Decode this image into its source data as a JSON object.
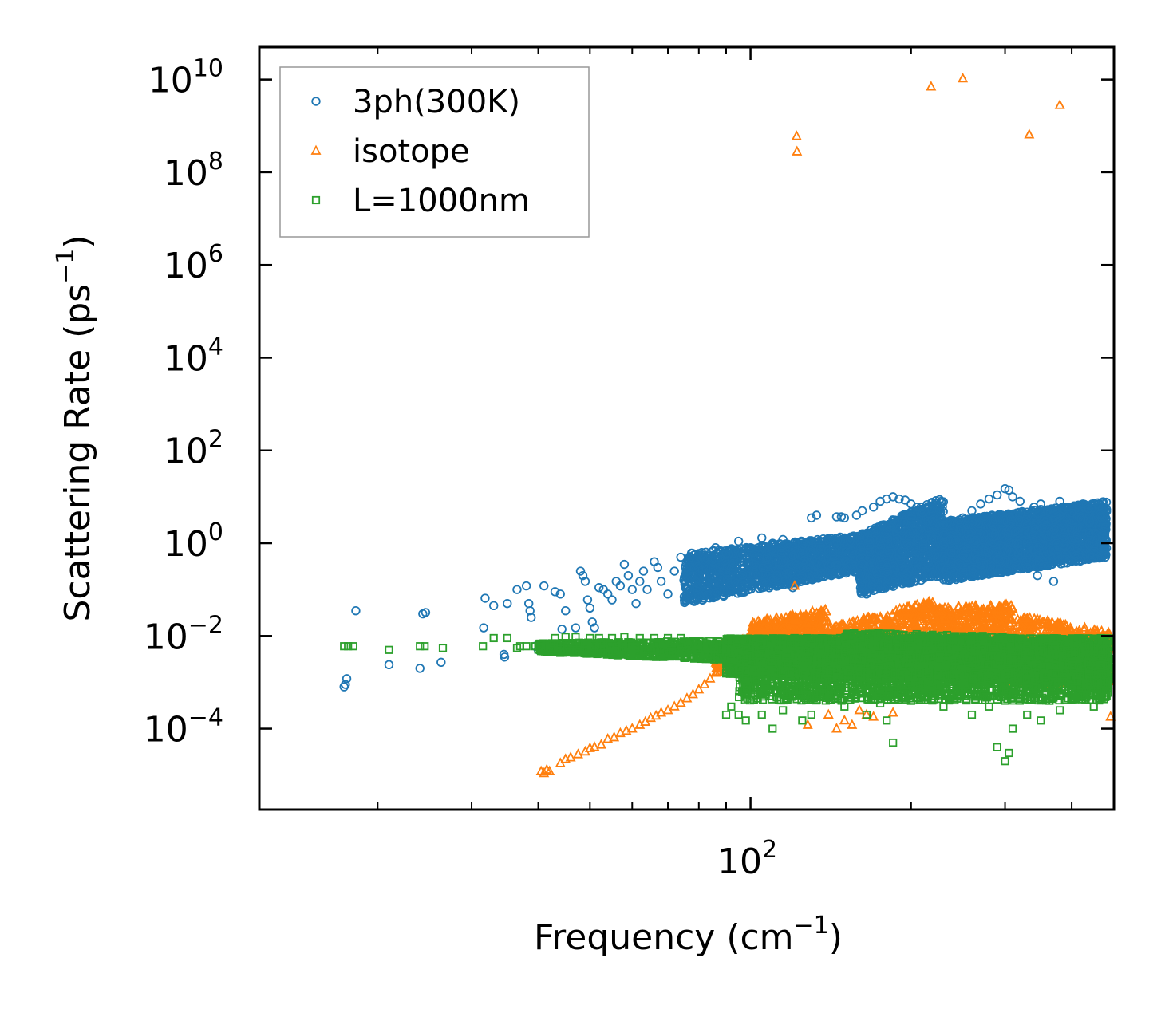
{
  "chart_data": {
    "type": "scatter",
    "xscale": "log",
    "yscale": "log",
    "xlim": [
      12,
      480
    ],
    "ylim": [
      1.8e-06,
      50000000000.0
    ],
    "xlabel": {
      "main": "Frequency (cm",
      "sup": "−1",
      "tail": ")"
    },
    "ylabel": {
      "main": "Scattering Rate (ps",
      "sup": "−1",
      "tail": ")"
    },
    "xticks": [
      {
        "value": 100,
        "base": "10",
        "exp": "2"
      }
    ],
    "yticks": [
      {
        "value": 10000000000.0,
        "base": "10",
        "exp": "10"
      },
      {
        "value": 100000000.0,
        "base": "10",
        "exp": "8"
      },
      {
        "value": 1000000.0,
        "base": "10",
        "exp": "6"
      },
      {
        "value": 10000.0,
        "base": "10",
        "exp": "4"
      },
      {
        "value": 100.0,
        "base": "10",
        "exp": "2"
      },
      {
        "value": 1,
        "base": "10",
        "exp": "0"
      },
      {
        "value": 0.01,
        "base": "10",
        "exp": "−2"
      },
      {
        "value": 0.0001,
        "base": "10",
        "exp": "−4"
      }
    ],
    "legend_position": "top-left",
    "series": [
      {
        "name": "3ph(300K)",
        "color": "#1f77b4",
        "marker": "circle",
        "points": [
          [
            17.3,
            0.0008
          ],
          [
            17.4,
            0.0009
          ],
          [
            17.5,
            0.0012
          ],
          [
            18.2,
            0.035
          ],
          [
            21.0,
            0.0024
          ],
          [
            24.0,
            0.002
          ],
          [
            24.3,
            0.03
          ],
          [
            24.6,
            0.032
          ],
          [
            26.3,
            0.0027
          ],
          [
            31.6,
            0.015
          ],
          [
            31.8,
            0.065
          ],
          [
            33.0,
            0.045
          ],
          [
            34.5,
            0.004
          ],
          [
            34.6,
            0.0035
          ],
          [
            35.0,
            0.05
          ],
          [
            36.5,
            0.1
          ],
          [
            38.0,
            0.12
          ],
          [
            38.4,
            0.05
          ],
          [
            38.6,
            0.035
          ],
          [
            38.8,
            0.025
          ],
          [
            39.5,
            0.006
          ],
          [
            40.0,
            0.005
          ],
          [
            41.0,
            0.12
          ],
          [
            41.5,
            0.006
          ],
          [
            43.0,
            0.09
          ],
          [
            44.0,
            0.08
          ],
          [
            44.3,
            0.014
          ],
          [
            45.0,
            0.035
          ],
          [
            47.0,
            0.015
          ],
          [
            48.0,
            0.25
          ],
          [
            48.5,
            0.2
          ],
          [
            49.0,
            0.15
          ],
          [
            49.5,
            0.06
          ],
          [
            50.0,
            0.04
          ],
          [
            50.5,
            0.02
          ],
          [
            51.0,
            0.015
          ],
          [
            52.0,
            0.11
          ],
          [
            53.0,
            0.1
          ],
          [
            54.0,
            0.08
          ],
          [
            55.0,
            0.06
          ],
          [
            56.0,
            0.15
          ],
          [
            57.0,
            0.12
          ],
          [
            58.0,
            0.35
          ],
          [
            59.0,
            0.2
          ],
          [
            60.0,
            0.1
          ],
          [
            61.0,
            0.05
          ],
          [
            62.0,
            0.15
          ],
          [
            63.0,
            0.25
          ],
          [
            64.0,
            0.1
          ],
          [
            66.0,
            0.4
          ],
          [
            67.0,
            0.3
          ],
          [
            68.0,
            0.15
          ],
          [
            70.0,
            0.08
          ],
          [
            72.0,
            0.25
          ],
          [
            74.0,
            0.5
          ],
          [
            76.0,
            0.3
          ],
          [
            78.0,
            0.2
          ],
          [
            80.0,
            0.6
          ],
          [
            83.0,
            0.45
          ],
          [
            86.0,
            0.8
          ],
          [
            90.0,
            0.6
          ],
          [
            95.0,
            1.1
          ],
          [
            100.0,
            0.8
          ],
          [
            105.0,
            1.3
          ],
          [
            110.0,
            1.0
          ],
          [
            115.0,
            1.2
          ],
          [
            120.0,
            0.11
          ],
          [
            121.0,
            0.12
          ],
          [
            125.0,
            0.9
          ],
          [
            130.0,
            3.5
          ],
          [
            133.0,
            4.0
          ],
          [
            140.0,
            0.7
          ],
          [
            145.0,
            3.7
          ],
          [
            148.0,
            3.7
          ],
          [
            150.0,
            3.5
          ],
          [
            155.0,
            0.6
          ],
          [
            158.0,
            4.0
          ],
          [
            162.0,
            5.0
          ],
          [
            165.0,
            0.08
          ],
          [
            170.0,
            6.0
          ],
          [
            175.0,
            8.0
          ],
          [
            180.0,
            9.0
          ],
          [
            185.0,
            10.0
          ],
          [
            190.0,
            9.0
          ],
          [
            195.0,
            8.5
          ],
          [
            200.0,
            7.0
          ],
          [
            205.0,
            6.0
          ],
          [
            210.0,
            4.5
          ],
          [
            215.0,
            3.0
          ],
          [
            220.0,
            2.8
          ],
          [
            225.0,
            0.5
          ],
          [
            230.0,
            2.5
          ],
          [
            240.0,
            2.0
          ],
          [
            250.0,
            3.5
          ],
          [
            260.0,
            5.0
          ],
          [
            270.0,
            7.0
          ],
          [
            280.0,
            9.0
          ],
          [
            290.0,
            11.0
          ],
          [
            300.0,
            15.0
          ],
          [
            305.0,
            14.0
          ],
          [
            310.0,
            10.0
          ],
          [
            315.0,
            0.4
          ],
          [
            320.0,
            8.0
          ],
          [
            330.0,
            0.3
          ],
          [
            340.0,
            6.0
          ],
          [
            345.0,
            0.2
          ],
          [
            350.0,
            7.0
          ],
          [
            360.0,
            5.0
          ],
          [
            370.0,
            0.15
          ],
          [
            380.0,
            8.0
          ],
          [
            390.0,
            6.0
          ],
          [
            400.0,
            4.5
          ],
          [
            410.0,
            1.5
          ],
          [
            420.0,
            7.0
          ],
          [
            430.0,
            5.5
          ],
          [
            440.0,
            0.9
          ],
          [
            450.0,
            6.0
          ],
          [
            455.0,
            3.5
          ],
          [
            460.0,
            1.8
          ]
        ],
        "bands": [
          {
            "x0": 75,
            "x1": 160,
            "lo0": 0.05,
            "hi0": 0.6,
            "lo1": 0.25,
            "hi1": 1.5,
            "n": 1400
          },
          {
            "x0": 160,
            "x1": 230,
            "lo0": 0.08,
            "hi0": 1.5,
            "lo1": 0.2,
            "hi1": 10,
            "n": 1200
          },
          {
            "x0": 230,
            "x1": 465,
            "lo0": 0.15,
            "hi0": 3.0,
            "lo1": 0.5,
            "hi1": 8.0,
            "n": 2600
          }
        ]
      },
      {
        "name": "isotope",
        "color": "#ff7f0e",
        "marker": "triangle",
        "points": [
          [
            40.5,
            1.2e-05
          ],
          [
            41.0,
            1.1e-05
          ],
          [
            41.5,
            1.3e-05
          ],
          [
            42.0,
            1.2e-05
          ],
          [
            44.0,
            1.8e-05
          ],
          [
            45.0,
            2.2e-05
          ],
          [
            46.0,
            2.4e-05
          ],
          [
            47.5,
            2.8e-05
          ],
          [
            49.0,
            3.2e-05
          ],
          [
            50.0,
            3.8e-05
          ],
          [
            51.0,
            4e-05
          ],
          [
            52.5,
            4.5e-05
          ],
          [
            54.0,
            6e-05
          ],
          [
            55.5,
            6.5e-05
          ],
          [
            57.0,
            8e-05
          ],
          [
            58.5,
            9e-05
          ],
          [
            60.0,
            0.0001
          ],
          [
            62.0,
            0.00012
          ],
          [
            63.5,
            0.00014
          ],
          [
            65.0,
            0.00017
          ],
          [
            66.5,
            0.00019
          ],
          [
            68.0,
            0.00022
          ],
          [
            70.0,
            0.00025
          ],
          [
            72.0,
            0.0003
          ],
          [
            74.0,
            0.00036
          ],
          [
            76.0,
            0.00045
          ],
          [
            78.0,
            0.00055
          ],
          [
            80.0,
            0.0007
          ],
          [
            82.0,
            0.0009
          ],
          [
            84.0,
            0.0012
          ],
          [
            86.0,
            0.0016
          ],
          [
            88.0,
            0.002
          ],
          [
            121.0,
            0.12
          ],
          [
            122.0,
            600000000.0
          ],
          [
            122.2,
            280000000.0
          ],
          [
            218.0,
            7000000000.0
          ],
          [
            250.0,
            10500000000.0
          ],
          [
            333.0,
            650000000.0
          ],
          [
            380.0,
            2800000000.0
          ],
          [
            128.0,
            0.00012
          ],
          [
            140.0,
            0.0002
          ],
          [
            145.0,
            0.0001
          ],
          [
            150.0,
            0.00015
          ],
          [
            155.0,
            0.00012
          ],
          [
            160.0,
            0.00025
          ],
          [
            165.0,
            0.0002
          ],
          [
            170.0,
            0.00018
          ],
          [
            185.0,
            0.00022
          ],
          [
            473.0,
            0.00018
          ],
          [
            120.0,
            0.0015
          ],
          [
            190.0,
            0.0025
          ],
          [
            210.0,
            0.002
          ],
          [
            350.0,
            0.0015
          ]
        ],
        "bands": [
          {
            "x0": 86,
            "x1": 115,
            "lo0": 0.0015,
            "hi0": 0.006,
            "lo1": 0.003,
            "hi1": 0.015,
            "n": 300
          },
          {
            "x0": 100,
            "x1": 140,
            "lo0": 0.003,
            "hi0": 0.02,
            "lo1": 0.004,
            "hi1": 0.04,
            "n": 500
          },
          {
            "x0": 140,
            "x1": 220,
            "lo0": 0.0015,
            "hi0": 0.015,
            "lo1": 0.002,
            "hi1": 0.06,
            "n": 700
          },
          {
            "x0": 220,
            "x1": 310,
            "lo0": 0.0015,
            "hi0": 0.04,
            "lo1": 0.001,
            "hi1": 0.05,
            "n": 700
          },
          {
            "x0": 310,
            "x1": 470,
            "lo0": 0.001,
            "hi0": 0.03,
            "lo1": 0.0008,
            "hi1": 0.012,
            "n": 700
          }
        ]
      },
      {
        "name": "L=1000nm",
        "color": "#2ca02c",
        "marker": "square",
        "points": [
          [
            17.3,
            0.006
          ],
          [
            17.6,
            0.006
          ],
          [
            18.0,
            0.006
          ],
          [
            21.0,
            0.005
          ],
          [
            24.0,
            0.006
          ],
          [
            24.5,
            0.006
          ],
          [
            26.5,
            0.0055
          ],
          [
            31.5,
            0.006
          ],
          [
            33.0,
            0.009
          ],
          [
            35.0,
            0.009
          ],
          [
            36.5,
            0.0055
          ],
          [
            37.0,
            0.006
          ],
          [
            38.0,
            0.006
          ],
          [
            39.5,
            0.006
          ],
          [
            40.5,
            0.0055
          ],
          [
            43.0,
            0.009
          ],
          [
            45.0,
            0.0095
          ],
          [
            47.0,
            0.0095
          ],
          [
            50.0,
            0.009
          ],
          [
            52.0,
            0.009
          ],
          [
            55.0,
            0.009
          ],
          [
            58.0,
            0.0095
          ],
          [
            62.0,
            0.009
          ],
          [
            66.0,
            0.009
          ],
          [
            70.0,
            0.009
          ],
          [
            74.0,
            0.009
          ],
          [
            90.0,
            0.0002
          ],
          [
            92.0,
            0.0003
          ],
          [
            95.0,
            0.0002
          ],
          [
            98.0,
            0.00015
          ],
          [
            105.0,
            0.0002
          ],
          [
            110.0,
            0.0001
          ],
          [
            115.0,
            0.00025
          ],
          [
            125.0,
            0.00015
          ],
          [
            130.0,
            0.0002
          ],
          [
            150.0,
            0.0003
          ],
          [
            165.0,
            0.0002
          ],
          [
            175.0,
            0.00035
          ],
          [
            180.0,
            0.00015
          ],
          [
            185.0,
            5e-05
          ],
          [
            200.0,
            0.0004
          ],
          [
            230.0,
            0.0003
          ],
          [
            260.0,
            0.0002
          ],
          [
            280.0,
            0.0003
          ],
          [
            290.0,
            4e-05
          ],
          [
            300.0,
            2e-05
          ],
          [
            305.0,
            3e-05
          ],
          [
            310.0,
            0.0001
          ],
          [
            330.0,
            0.0002
          ],
          [
            350.0,
            0.00015
          ],
          [
            380.0,
            0.00025
          ],
          [
            440.0,
            0.0003
          ],
          [
            465.0,
            0.0005
          ]
        ],
        "bands": [
          {
            "x0": 40,
            "x1": 90,
            "lo0": 0.0045,
            "hi0": 0.007,
            "lo1": 0.003,
            "hi1": 0.008,
            "n": 700
          },
          {
            "x0": 90,
            "x1": 470,
            "lo0": 0.0015,
            "hi0": 0.009,
            "lo1": 0.001,
            "hi1": 0.009,
            "n": 5000
          },
          {
            "x0": 95,
            "x1": 470,
            "lo0": 0.0004,
            "hi0": 0.002,
            "lo1": 0.0004,
            "hi1": 0.0015,
            "n": 1200
          },
          {
            "x0": 150,
            "x1": 300,
            "lo0": 0.005,
            "hi0": 0.012,
            "lo1": 0.005,
            "hi1": 0.01,
            "n": 400
          }
        ]
      }
    ]
  }
}
